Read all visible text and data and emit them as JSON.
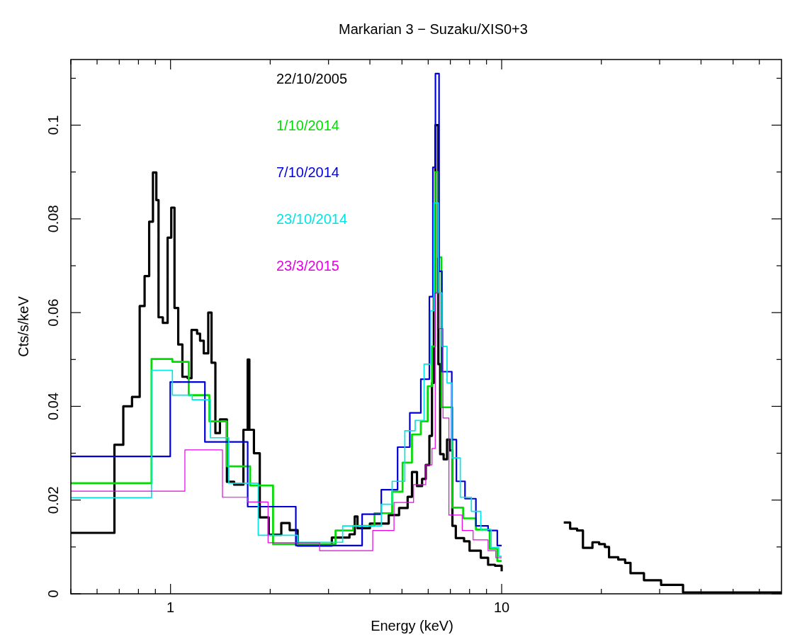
{
  "chart_data": {
    "type": "step",
    "title": "Markarian 3 − Suzaku/XIS0+3",
    "xlabel": "Energy (keV)",
    "ylabel": "Cts/s/keV",
    "log": "x",
    "legend": "top left",
    "xlim": [
      0.5,
      70
    ],
    "ylim": [
      0,
      0.114
    ],
    "xticks": [
      {
        "value": 0.5,
        "label": null
      },
      {
        "value": 0.6,
        "label": null
      },
      {
        "value": 0.7,
        "label": null
      },
      {
        "value": 0.8,
        "label": null
      },
      {
        "value": 0.9,
        "label": null
      },
      1,
      {
        "value": 2,
        "label": null
      },
      {
        "value": 3,
        "label": null
      },
      {
        "value": 4,
        "label": null
      },
      {
        "value": 5,
        "label": null
      },
      {
        "value": 6,
        "label": null
      },
      {
        "value": 7,
        "label": null
      },
      {
        "value": 8,
        "label": null
      },
      {
        "value": 9,
        "label": null
      },
      10,
      {
        "value": 20,
        "label": null
      },
      {
        "value": 30,
        "label": null
      },
      {
        "value": 40,
        "label": null
      },
      {
        "value": 50,
        "label": null
      },
      {
        "value": 60,
        "label": null
      }
    ],
    "yticks": [
      0,
      {
        "value": 0.01,
        "label": null
      },
      0.02,
      {
        "value": 0.03,
        "label": null
      },
      0.04,
      {
        "value": 0.05,
        "label": null
      },
      0.06,
      {
        "value": 0.07,
        "label": null
      },
      0.08,
      {
        "value": 0.09,
        "label": null
      },
      0.1,
      {
        "value": 0.11,
        "label": null
      }
    ],
    "series": [
      {
        "name": "22/10/2005",
        "color": "#000000",
        "x": [
          0.5,
          0.677,
          0.72,
          0.765,
          0.807,
          0.835,
          0.862,
          0.885,
          0.906,
          0.92,
          0.948,
          0.98,
          1.005,
          1.028,
          1.055,
          1.086,
          1.127,
          1.157,
          1.203,
          1.228,
          1.26,
          1.3,
          1.33,
          1.366,
          1.41,
          1.48,
          1.556,
          1.66,
          1.71,
          1.73,
          1.786,
          1.86,
          1.98,
          2.16,
          2.29,
          2.42,
          3.07,
          3.47,
          3.6,
          3.67,
          4.0,
          4.56,
          4.9,
          5.2,
          5.36,
          5.55,
          5.75,
          5.9,
          6.05,
          6.16,
          6.24,
          6.31,
          6.44,
          6.52,
          6.68,
          6.84,
          6.97,
          7.1,
          7.27,
          7.7,
          8.0,
          8.65,
          9.1,
          9.55,
          10,
          12,
          15.4,
          16.1,
          16.9,
          17.6,
          18.8,
          19.7,
          20.5,
          21.1,
          22.5,
          23.6,
          24.5,
          26.9,
          30.3,
          35.3,
          70
        ],
        "values": [
          0.013,
          0.0318,
          0.04,
          0.042,
          0.0614,
          0.0678,
          0.0794,
          0.0899,
          0.084,
          0.059,
          0.0578,
          0.076,
          0.0824,
          0.061,
          0.0532,
          0.0463,
          0.046,
          0.0563,
          0.0555,
          0.054,
          0.0513,
          0.06,
          0.0493,
          0.0343,
          0.0372,
          0.0239,
          0.0233,
          0.035,
          0.05,
          0.035,
          0.03,
          0.0163,
          0.0126,
          0.0151,
          0.0136,
          0.0103,
          0.012,
          0.0127,
          0.0165,
          0.014,
          0.015,
          0.0168,
          0.0183,
          0.0207,
          0.026,
          0.023,
          0.0245,
          0.0275,
          0.0337,
          0.045,
          0.0642,
          0.1,
          0.049,
          0.0298,
          0.0287,
          0.0329,
          0.0306,
          0.0145,
          0.0119,
          0.0112,
          0.0092,
          0.0077,
          0.0062,
          0.006,
          0.0048,
          null,
          0.0152,
          0.0139,
          0.0135,
          0.0098,
          0.011,
          0.0106,
          0.01,
          0.0078,
          0.0073,
          0.0066,
          0.0044,
          0.0029,
          0.0019,
          0.0003,
          0.0003
        ]
      },
      {
        "name": "1/10/2014",
        "color": "#00dd00",
        "x": [
          0.5,
          0.876,
          1.013,
          1.135,
          1.31,
          1.48,
          1.74,
          2.04,
          3.15,
          3.56,
          4.13,
          4.67,
          5.02,
          5.36,
          5.7,
          5.98,
          6.16,
          6.3,
          6.44,
          6.58,
          7.1,
          7.65,
          8.36,
          9.2,
          9.7,
          10
        ],
        "values": [
          0.0236,
          0.0501,
          0.0495,
          0.0424,
          0.0368,
          0.0272,
          0.0231,
          0.0106,
          0.0135,
          0.0145,
          0.0172,
          0.0218,
          0.028,
          0.034,
          0.0368,
          0.0443,
          0.0528,
          0.09,
          0.0718,
          0.0398,
          0.0184,
          0.0161,
          0.0137,
          0.0096,
          0.007,
          0.007
        ]
      },
      {
        "name": "7/10/2014",
        "color": "#0000dd",
        "x": [
          0.5,
          0.998,
          1.27,
          1.71,
          2.39,
          3.79,
          4.33,
          4.85,
          5.28,
          5.7,
          6.05,
          6.2,
          6.31,
          6.47,
          6.6,
          7.07,
          7.3,
          7.75,
          8.36,
          9.1,
          9.7,
          10
        ],
        "values": [
          0.0293,
          0.0452,
          0.0324,
          0.0186,
          0.0103,
          0.017,
          0.0222,
          0.0313,
          0.0386,
          0.0458,
          0.0634,
          0.091,
          0.111,
          0.0688,
          0.0474,
          0.0329,
          0.024,
          0.0203,
          0.0145,
          0.0135,
          0.0103,
          0.0103
        ]
      },
      {
        "name": "23/10/2014",
        "color": "#00e5e5",
        "x": [
          0.5,
          0.876,
          1.013,
          1.163,
          1.32,
          1.5,
          1.84,
          2.42,
          3.31,
          4.33,
          4.67,
          5.1,
          5.48,
          5.83,
          6.1,
          6.24,
          6.44,
          6.6,
          6.84,
          7.07,
          7.5,
          8.1,
          8.65,
          9.3,
          9.8,
          10
        ],
        "values": [
          0.0205,
          0.0477,
          0.0424,
          0.0414,
          0.0333,
          0.0236,
          0.0125,
          0.011,
          0.0145,
          0.0191,
          0.024,
          0.0348,
          0.037,
          0.049,
          0.0604,
          0.0834,
          0.0642,
          0.0528,
          0.045,
          0.029,
          0.0206,
          0.0176,
          0.0137,
          0.0099,
          0.008,
          0.008
        ]
      },
      {
        "name": "23/3/2015",
        "color": "#e500e5",
        "x": [
          0.5,
          1.105,
          1.435,
          1.71,
          1.97,
          2.82,
          4.08,
          4.73,
          5.42,
          5.9,
          6.16,
          6.3,
          6.47,
          6.65,
          6.93,
          7.6,
          8.2,
          9.1,
          9.6,
          10
        ],
        "values": [
          0.0219,
          0.0307,
          0.0206,
          0.0196,
          0.0109,
          0.0092,
          0.0135,
          0.0195,
          0.0233,
          0.0275,
          0.031,
          0.0642,
          0.0566,
          0.0375,
          0.0168,
          0.0135,
          0.0115,
          0.0092,
          0.0077,
          0.0077
        ]
      }
    ]
  }
}
